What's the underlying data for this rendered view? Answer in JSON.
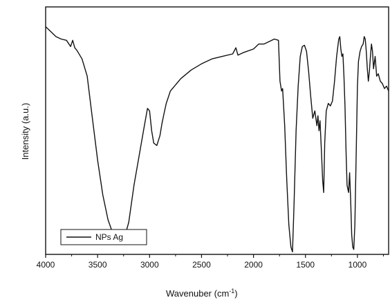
{
  "chart_data": {
    "type": "line",
    "title": "",
    "xlabel": "Wavenuber (cm",
    "xlabel_sup": "-1",
    "xlabel_close": ")",
    "ylabel": "Intensity (a.u.)",
    "xlim": [
      4000,
      700
    ],
    "x_reversed": true,
    "ylim": [
      0,
      100
    ],
    "y_ticks_labeled": false,
    "x_ticks": [
      {
        "value": 4000,
        "label": "4000"
      },
      {
        "value": 3500,
        "label": "3500"
      },
      {
        "value": 3000,
        "label": "3000"
      },
      {
        "value": 2500,
        "label": "2500"
      },
      {
        "value": 2000,
        "label": "2000"
      },
      {
        "value": 1500,
        "label": "1500"
      },
      {
        "value": 1000,
        "label": "1000"
      }
    ],
    "grid": false,
    "legend": {
      "position": "bottom-left",
      "entries": [
        "NPs Ag"
      ]
    },
    "series": [
      {
        "name": "NPs Ag",
        "color": "#111111",
        "points": [
          [
            4000,
            92
          ],
          [
            3950,
            90
          ],
          [
            3900,
            88
          ],
          [
            3850,
            87
          ],
          [
            3800,
            86.5
          ],
          [
            3760,
            84
          ],
          [
            3740,
            86.5
          ],
          [
            3720,
            83.5
          ],
          [
            3700,
            82.5
          ],
          [
            3650,
            79
          ],
          [
            3600,
            72
          ],
          [
            3550,
            55
          ],
          [
            3500,
            38
          ],
          [
            3450,
            24
          ],
          [
            3400,
            14
          ],
          [
            3350,
            8
          ],
          [
            3300,
            5.5
          ],
          [
            3270,
            5
          ],
          [
            3250,
            5.5
          ],
          [
            3200,
            13
          ],
          [
            3150,
            28
          ],
          [
            3100,
            40
          ],
          [
            3050,
            52
          ],
          [
            3020,
            59
          ],
          [
            3000,
            58
          ],
          [
            2980,
            50
          ],
          [
            2960,
            45
          ],
          [
            2930,
            44
          ],
          [
            2900,
            48
          ],
          [
            2880,
            53
          ],
          [
            2860,
            57
          ],
          [
            2840,
            61
          ],
          [
            2800,
            66
          ],
          [
            2700,
            71
          ],
          [
            2600,
            74.5
          ],
          [
            2500,
            77
          ],
          [
            2400,
            79
          ],
          [
            2300,
            80
          ],
          [
            2200,
            81
          ],
          [
            2170,
            83.5
          ],
          [
            2150,
            80.5
          ],
          [
            2100,
            81.5
          ],
          [
            2000,
            83
          ],
          [
            1950,
            85
          ],
          [
            1900,
            85
          ],
          [
            1850,
            86
          ],
          [
            1800,
            87
          ],
          [
            1760,
            86.5
          ],
          [
            1745,
            70
          ],
          [
            1730,
            66
          ],
          [
            1720,
            67
          ],
          [
            1700,
            52
          ],
          [
            1680,
            30
          ],
          [
            1660,
            12
          ],
          [
            1640,
            3
          ],
          [
            1625,
            1
          ],
          [
            1610,
            20
          ],
          [
            1590,
            50
          ],
          [
            1570,
            68
          ],
          [
            1550,
            80
          ],
          [
            1530,
            84
          ],
          [
            1510,
            84.5
          ],
          [
            1490,
            82
          ],
          [
            1470,
            74
          ],
          [
            1450,
            64
          ],
          [
            1430,
            55
          ],
          [
            1410,
            58
          ],
          [
            1390,
            52
          ],
          [
            1380,
            56
          ],
          [
            1370,
            50
          ],
          [
            1360,
            54
          ],
          [
            1345,
            40
          ],
          [
            1335,
            30
          ],
          [
            1325,
            25
          ],
          [
            1315,
            45
          ],
          [
            1300,
            58
          ],
          [
            1280,
            61
          ],
          [
            1260,
            60
          ],
          [
            1240,
            62
          ],
          [
            1220,
            70
          ],
          [
            1200,
            80
          ],
          [
            1180,
            87
          ],
          [
            1170,
            88
          ],
          [
            1160,
            83
          ],
          [
            1150,
            80
          ],
          [
            1140,
            81
          ],
          [
            1130,
            72
          ],
          [
            1120,
            60
          ],
          [
            1110,
            42
          ],
          [
            1100,
            28
          ],
          [
            1085,
            25
          ],
          [
            1075,
            33
          ],
          [
            1065,
            22
          ],
          [
            1055,
            8
          ],
          [
            1045,
            3
          ],
          [
            1035,
            2
          ],
          [
            1025,
            12
          ],
          [
            1010,
            45
          ],
          [
            1000,
            68
          ],
          [
            990,
            78
          ],
          [
            975,
            82
          ],
          [
            960,
            84
          ],
          [
            945,
            85
          ],
          [
            935,
            88
          ],
          [
            925,
            87
          ],
          [
            915,
            82
          ],
          [
            905,
            75
          ],
          [
            895,
            70
          ],
          [
            885,
            74
          ],
          [
            875,
            80
          ],
          [
            865,
            85
          ],
          [
            855,
            82
          ],
          [
            845,
            75
          ],
          [
            830,
            80
          ],
          [
            815,
            72
          ],
          [
            800,
            73
          ],
          [
            780,
            70
          ],
          [
            760,
            69
          ],
          [
            740,
            67
          ],
          [
            720,
            68
          ],
          [
            700,
            66
          ]
        ]
      }
    ]
  }
}
